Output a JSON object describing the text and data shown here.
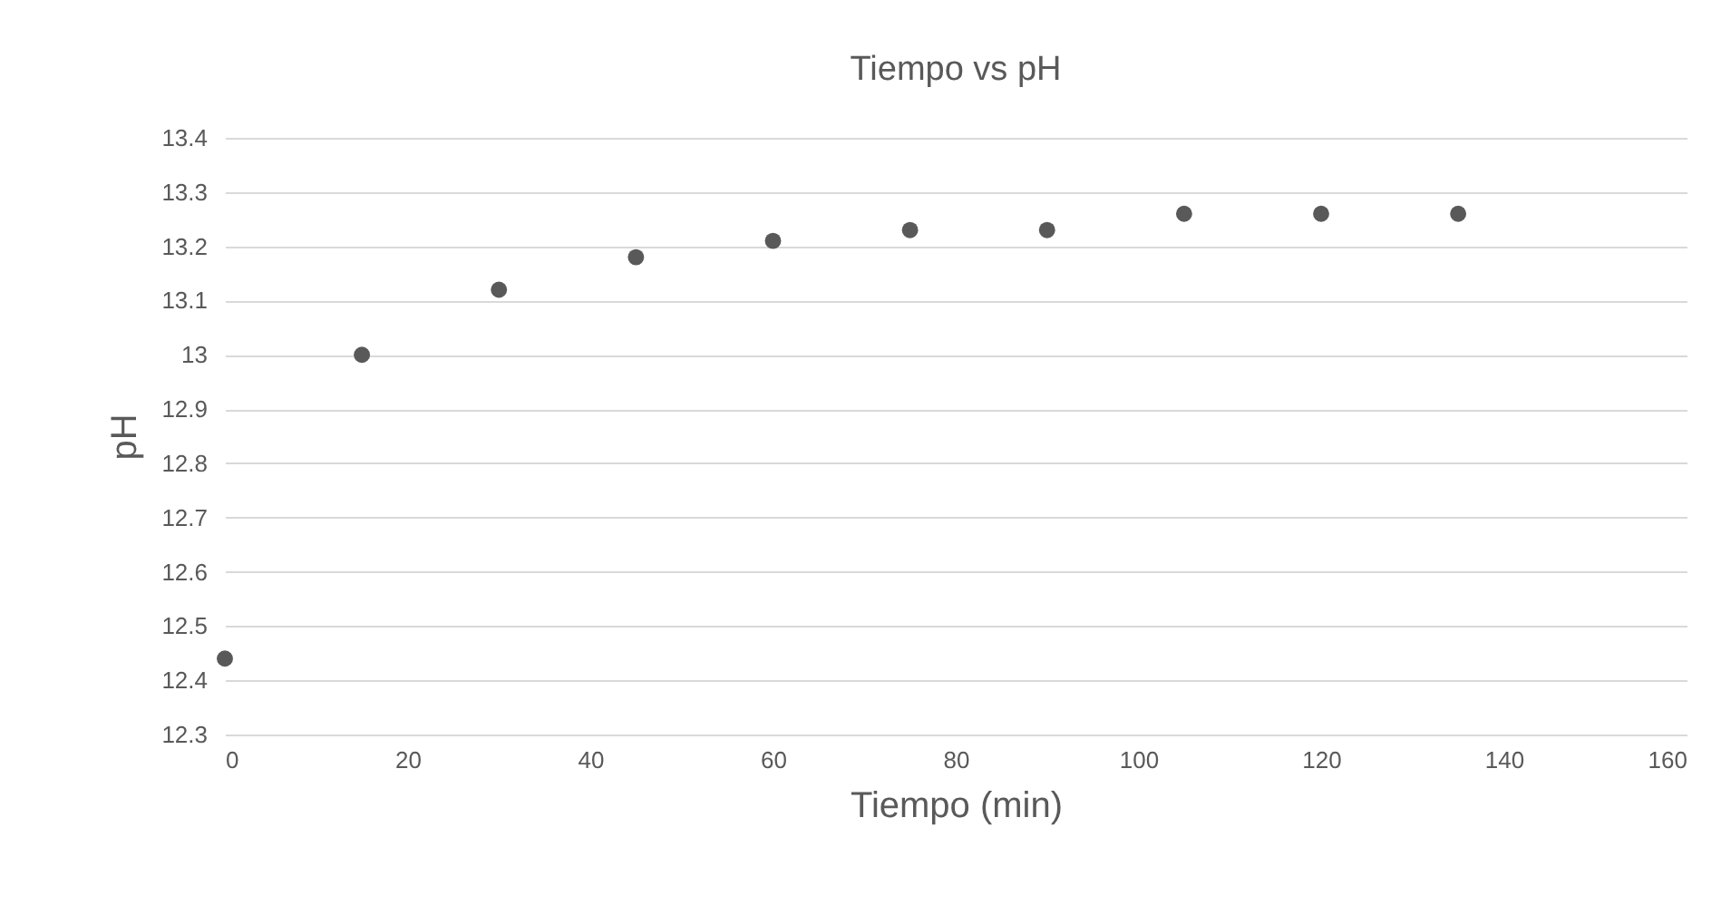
{
  "chart_data": {
    "type": "scatter",
    "title": "Tiempo vs pH",
    "xlabel": "Tiempo (min)",
    "ylabel": "pH",
    "x": [
      0,
      15,
      30,
      45,
      60,
      75,
      90,
      105,
      120,
      135
    ],
    "series": [
      {
        "color": "#595959",
        "values": [
          12.44,
          13.0,
          13.12,
          13.18,
          13.21,
          13.23,
          13.23,
          13.26,
          13.26,
          13.26
        ]
      }
    ],
    "xlim": [
      0,
      160
    ],
    "xticks": [
      0,
      20,
      40,
      60,
      80,
      100,
      120,
      140,
      160
    ],
    "ylim": [
      12.3,
      13.4
    ],
    "yticks": [
      12.3,
      12.4,
      12.5,
      12.6,
      12.7,
      12.8,
      12.9,
      13,
      13.1,
      13.2,
      13.3,
      13.4
    ],
    "grid": "y",
    "marker": "circle"
  }
}
